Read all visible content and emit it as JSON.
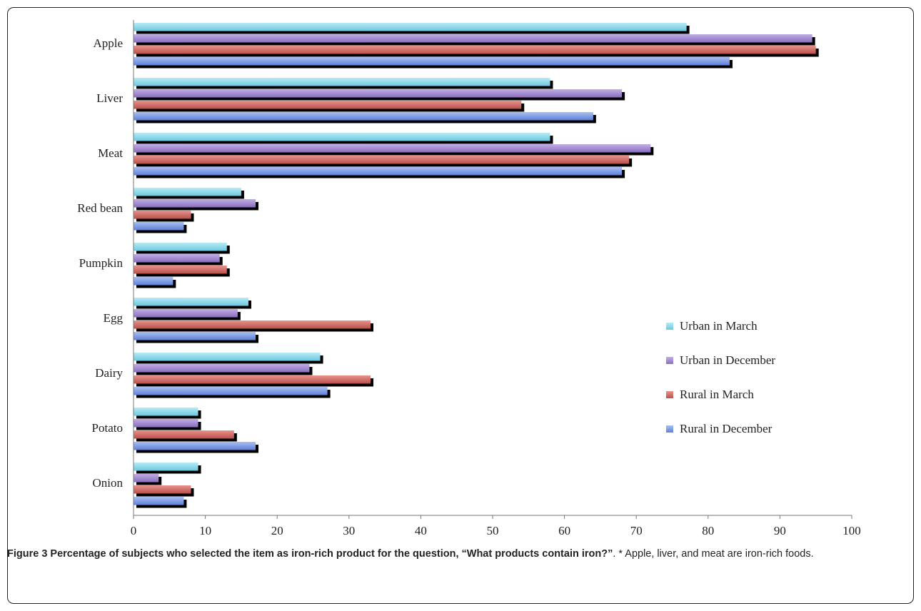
{
  "chart_data": {
    "type": "bar",
    "orientation": "horizontal",
    "categories": [
      "Apple",
      "Liver",
      "Meat",
      "Red bean",
      "Pumpkin",
      "Egg",
      "Dairy",
      "Potato",
      "Onion"
    ],
    "series": [
      {
        "name": "Urban in March",
        "color": "#8ed8ea",
        "values": [
          77,
          58,
          58,
          15,
          13,
          16,
          26,
          9,
          9
        ]
      },
      {
        "name": "Urban in December",
        "color": "#a48ccf",
        "values": [
          94.5,
          68,
          72,
          17,
          12,
          14.5,
          24.5,
          9,
          3.5
        ]
      },
      {
        "name": "Rural in March",
        "color": "#cf6c66",
        "values": [
          95,
          54,
          69,
          8,
          13,
          33,
          33,
          14,
          8
        ]
      },
      {
        "name": "Rural in December",
        "color": "#7f9de6",
        "values": [
          83,
          64,
          68,
          7,
          5.5,
          17,
          27,
          17,
          7
        ]
      }
    ],
    "xlim": [
      0,
      100
    ],
    "xticks": [
      "0",
      "10",
      "20",
      "30",
      "40",
      "50",
      "60",
      "70",
      "80",
      "90",
      "100"
    ],
    "grid": false,
    "legend": "right"
  },
  "caption": {
    "bold": "Figure 3 Percentage of subjects who selected the item as iron-rich product for the question, “What products contain iron?”",
    "rest": ". * Apple, liver, and meat are iron-rich foods."
  }
}
